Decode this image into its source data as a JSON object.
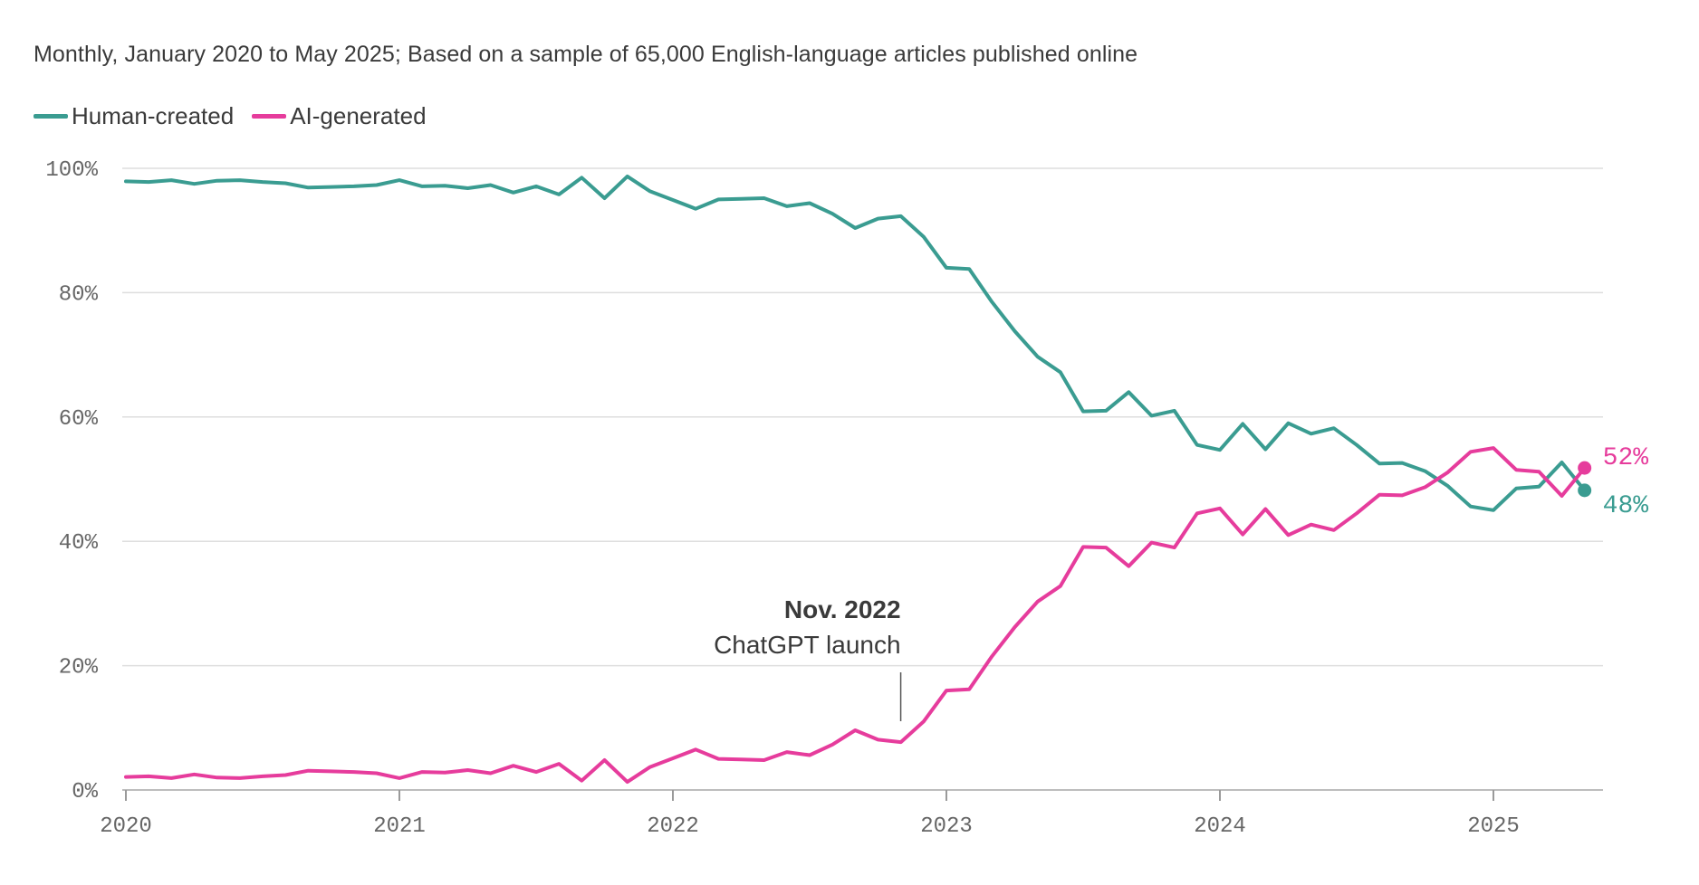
{
  "subtitle": "Monthly, January 2020 to May 2025; Based on a sample of 65,000 English-language articles published online",
  "chart_data": {
    "type": "line",
    "title": "",
    "xlabel": "",
    "ylabel": "",
    "xlim": [
      2020.0,
      2025.42
    ],
    "ylim": [
      0,
      100
    ],
    "y_ticks": [
      "0%",
      "20%",
      "40%",
      "60%",
      "80%",
      "100%"
    ],
    "y_tick_values": [
      0,
      20,
      40,
      60,
      80,
      100
    ],
    "x_ticks": [
      "2020",
      "2021",
      "2022",
      "2023",
      "2024",
      "2025"
    ],
    "x_tick_values": [
      2020,
      2021,
      2022,
      2023,
      2024,
      2025
    ],
    "grid": true,
    "legend_position": "top-left",
    "series": [
      {
        "name": "Human-created",
        "color": "#3a9c91",
        "end_label": "48%",
        "values": [
          97.9,
          97.8,
          98.1,
          97.5,
          98.0,
          98.1,
          97.8,
          97.6,
          96.9,
          97.0,
          97.1,
          97.3,
          98.1,
          97.1,
          97.2,
          96.8,
          97.3,
          96.1,
          97.1,
          95.8,
          98.5,
          95.2,
          98.7,
          96.3,
          94.9,
          93.5,
          95.0,
          95.1,
          95.2,
          93.9,
          94.4,
          92.7,
          90.4,
          91.9,
          92.3,
          89.0,
          84.0,
          83.8,
          78.5,
          73.8,
          69.7,
          67.2,
          60.9,
          61.0,
          64.0,
          60.2,
          61.0,
          55.5,
          54.7,
          58.9,
          54.8,
          59.0,
          57.3,
          58.2,
          55.5,
          52.5,
          52.6,
          51.3,
          48.9,
          45.6,
          45.0,
          48.5,
          48.8,
          52.7,
          48.2
        ]
      },
      {
        "name": "AI-generated",
        "color": "#e63c9c",
        "end_label": "52%",
        "values": [
          2.1,
          2.2,
          1.9,
          2.5,
          2.0,
          1.9,
          2.2,
          2.4,
          3.1,
          3.0,
          2.9,
          2.7,
          1.9,
          2.9,
          2.8,
          3.2,
          2.7,
          3.9,
          2.9,
          4.2,
          1.5,
          4.8,
          1.3,
          3.7,
          5.1,
          6.5,
          5.0,
          4.9,
          4.8,
          6.1,
          5.6,
          7.3,
          9.6,
          8.1,
          7.7,
          11.0,
          16.0,
          16.2,
          21.5,
          26.2,
          30.3,
          32.8,
          39.1,
          39.0,
          36.0,
          39.8,
          39.0,
          44.5,
          45.3,
          41.1,
          45.2,
          41.0,
          42.7,
          41.8,
          44.5,
          47.5,
          47.4,
          48.7,
          51.1,
          54.4,
          55.0,
          51.5,
          51.2,
          47.3,
          51.8
        ]
      }
    ],
    "annotation": {
      "title": "Nov. 2022",
      "subtitle": "ChatGPT launch",
      "x": 2022.833
    }
  }
}
